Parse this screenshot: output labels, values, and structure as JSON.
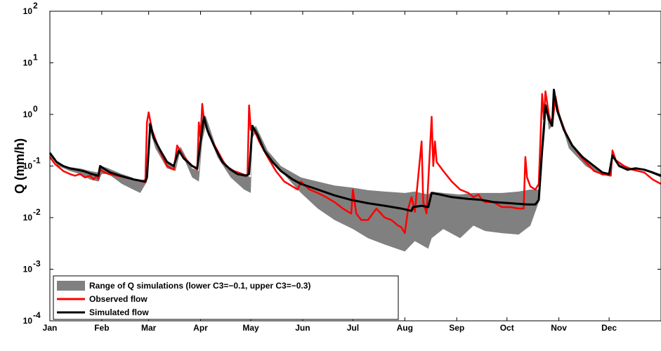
{
  "chart_data": {
    "type": "line",
    "title": "",
    "xlabel": "",
    "ylabel": "Q (mm/h)",
    "yscale": "log",
    "ylim": [
      0.0001,
      100
    ],
    "xlim": [
      0,
      365
    ],
    "grid": false,
    "legend_position": "bottom-left",
    "x_ticks": [
      {
        "label": "Jan",
        "day": 0
      },
      {
        "label": "Feb",
        "day": 31
      },
      {
        "label": "Mar",
        "day": 59
      },
      {
        "label": "Apr",
        "day": 90
      },
      {
        "label": "May",
        "day": 120
      },
      {
        "label": "Jun",
        "day": 151
      },
      {
        "label": "Jul",
        "day": 181
      },
      {
        "label": "Aug",
        "day": 212
      },
      {
        "label": "Sep",
        "day": 243
      },
      {
        "label": "Oct",
        "day": 273
      },
      {
        "label": "Nov",
        "day": 304
      },
      {
        "label": "Dec",
        "day": 334
      }
    ],
    "y_ticks": [
      {
        "base": "10",
        "exp": "-4",
        "value": 0.0001
      },
      {
        "base": "10",
        "exp": "-3",
        "value": 0.001
      },
      {
        "base": "10",
        "exp": "-2",
        "value": 0.01
      },
      {
        "base": "10",
        "exp": "-1",
        "value": 0.1
      },
      {
        "base": "10",
        "exp": "0",
        "value": 1
      },
      {
        "base": "10",
        "exp": "1",
        "value": 10
      },
      {
        "base": "10",
        "exp": "2",
        "value": 100
      }
    ],
    "legend": [
      {
        "label": "Range of Q simulations (lower C3=−0.1, upper C3=−0.3)",
        "color": "#808080",
        "kind": "patch"
      },
      {
        "label": "Observed flow",
        "color": "#ff0000",
        "kind": "line"
      },
      {
        "label": "Simulated flow",
        "color": "#000000",
        "kind": "line"
      }
    ],
    "series": [
      {
        "name": "Range of Q simulations (lower C3=−0.1, upper C3=−0.3)",
        "kind": "band",
        "color": "#808080",
        "points": [
          [
            0,
            0.16,
            0.18
          ],
          [
            5,
            0.1,
            0.11
          ],
          [
            12,
            0.08,
            0.095
          ],
          [
            18,
            0.07,
            0.09
          ],
          [
            24,
            0.055,
            0.08
          ],
          [
            29,
            0.05,
            0.075
          ],
          [
            31,
            0.07,
            0.1
          ],
          [
            35,
            0.07,
            0.09
          ],
          [
            43,
            0.045,
            0.07
          ],
          [
            49,
            0.036,
            0.06
          ],
          [
            54,
            0.03,
            0.05
          ],
          [
            58,
            0.05,
            0.06
          ],
          [
            59,
            0.6,
            0.75
          ],
          [
            63,
            0.22,
            0.28
          ],
          [
            70,
            0.09,
            0.12
          ],
          [
            75,
            0.08,
            0.1
          ],
          [
            78,
            0.2,
            0.24
          ],
          [
            85,
            0.06,
            0.09
          ],
          [
            89,
            0.05,
            0.08
          ],
          [
            91,
            0.3,
            0.7
          ],
          [
            93,
            0.6,
            0.95
          ],
          [
            100,
            0.15,
            0.2
          ],
          [
            108,
            0.06,
            0.08
          ],
          [
            116,
            0.035,
            0.07
          ],
          [
            120,
            0.03,
            0.06
          ],
          [
            121,
            0.35,
            0.5
          ],
          [
            123,
            0.45,
            0.6
          ],
          [
            130,
            0.15,
            0.2
          ],
          [
            138,
            0.08,
            0.1
          ],
          [
            150,
            0.03,
            0.06
          ],
          [
            160,
            0.015,
            0.05
          ],
          [
            170,
            0.009,
            0.042
          ],
          [
            181,
            0.006,
            0.038
          ],
          [
            190,
            0.004,
            0.034
          ],
          [
            200,
            0.003,
            0.032
          ],
          [
            212,
            0.0022,
            0.03
          ],
          [
            218,
            0.0035,
            0.032
          ],
          [
            226,
            0.0025,
            0.028
          ],
          [
            228,
            0.004,
            0.032
          ],
          [
            235,
            0.006,
            0.03
          ],
          [
            245,
            0.004,
            0.028
          ],
          [
            253,
            0.007,
            0.03
          ],
          [
            260,
            0.0055,
            0.03
          ],
          [
            270,
            0.005,
            0.03
          ],
          [
            280,
            0.0047,
            0.032
          ],
          [
            287,
            0.007,
            0.035
          ],
          [
            292,
            0.02,
            0.035
          ],
          [
            294,
            0.3,
            0.45
          ],
          [
            296,
            1.6,
            1.8
          ],
          [
            298,
            0.5,
            0.7
          ],
          [
            300,
            0.6,
            0.9
          ],
          [
            301,
            2.3,
            3.0
          ],
          [
            303,
            1.2,
            1.5
          ],
          [
            310,
            0.22,
            0.3
          ],
          [
            320,
            0.1,
            0.14
          ],
          [
            330,
            0.065,
            0.075
          ],
          [
            335,
            0.07,
            0.075
          ],
          [
            336,
            0.15,
            0.16
          ],
          [
            340,
            0.1,
            0.11
          ],
          [
            345,
            0.08,
            0.09
          ],
          [
            350,
            0.09,
            0.095
          ],
          [
            358,
            0.075,
            0.08
          ],
          [
            365,
            0.06,
            0.07
          ]
        ]
      },
      {
        "name": "Observed flow",
        "kind": "line",
        "color": "#ff0000",
        "points": [
          [
            0,
            0.15
          ],
          [
            3,
            0.11
          ],
          [
            8,
            0.08
          ],
          [
            12,
            0.07
          ],
          [
            15,
            0.065
          ],
          [
            18,
            0.07
          ],
          [
            21,
            0.06
          ],
          [
            24,
            0.065
          ],
          [
            26,
            0.055
          ],
          [
            28,
            0.065
          ],
          [
            29,
            0.055
          ],
          [
            30,
            0.09
          ],
          [
            31,
            0.08
          ],
          [
            35,
            0.07
          ],
          [
            40,
            0.065
          ],
          [
            45,
            0.06
          ],
          [
            50,
            0.055
          ],
          [
            55,
            0.05
          ],
          [
            57,
            0.048
          ],
          [
            58,
            0.7
          ],
          [
            59,
            1.1
          ],
          [
            61,
            0.5
          ],
          [
            65,
            0.22
          ],
          [
            70,
            0.1
          ],
          [
            74,
            0.085
          ],
          [
            76,
            0.25
          ],
          [
            80,
            0.15
          ],
          [
            85,
            0.1
          ],
          [
            88,
            0.085
          ],
          [
            89,
            0.7
          ],
          [
            90,
            0.35
          ],
          [
            91,
            1.6
          ],
          [
            92,
            0.8
          ],
          [
            95,
            0.4
          ],
          [
            100,
            0.2
          ],
          [
            105,
            0.1
          ],
          [
            110,
            0.08
          ],
          [
            115,
            0.07
          ],
          [
            118,
            0.065
          ],
          [
            119,
            1.5
          ],
          [
            120,
            0.5
          ],
          [
            122,
            0.5
          ],
          [
            125,
            0.3
          ],
          [
            130,
            0.15
          ],
          [
            135,
            0.08
          ],
          [
            140,
            0.05
          ],
          [
            145,
            0.04
          ],
          [
            148,
            0.035
          ],
          [
            150,
            0.05
          ],
          [
            155,
            0.035
          ],
          [
            160,
            0.03
          ],
          [
            165,
            0.025
          ],
          [
            170,
            0.02
          ],
          [
            175,
            0.015
          ],
          [
            180,
            0.012
          ],
          [
            181,
            0.035
          ],
          [
            183,
            0.012
          ],
          [
            186,
            0.009
          ],
          [
            190,
            0.009
          ],
          [
            195,
            0.015
          ],
          [
            200,
            0.01
          ],
          [
            204,
            0.009
          ],
          [
            208,
            0.007
          ],
          [
            210,
            0.0065
          ],
          [
            212,
            0.005
          ],
          [
            214,
            0.015
          ],
          [
            216,
            0.025
          ],
          [
            218,
            0.013
          ],
          [
            222,
            0.3
          ],
          [
            223,
            0.02
          ],
          [
            225,
            0.012
          ],
          [
            228,
            0.9
          ],
          [
            229,
            0.1
          ],
          [
            230,
            0.3
          ],
          [
            231,
            0.12
          ],
          [
            235,
            0.08
          ],
          [
            240,
            0.05
          ],
          [
            245,
            0.035
          ],
          [
            250,
            0.03
          ],
          [
            253,
            0.025
          ],
          [
            256,
            0.028
          ],
          [
            258,
            0.022
          ],
          [
            260,
            0.02
          ],
          [
            265,
            0.02
          ],
          [
            270,
            0.016
          ],
          [
            275,
            0.016
          ],
          [
            280,
            0.015
          ],
          [
            283,
            0.015
          ],
          [
            284,
            0.15
          ],
          [
            285,
            0.06
          ],
          [
            287,
            0.04
          ],
          [
            290,
            0.035
          ],
          [
            292,
            0.045
          ],
          [
            294,
            2.5
          ],
          [
            295,
            0.8
          ],
          [
            296,
            2.8
          ],
          [
            298,
            1.0
          ],
          [
            300,
            0.6
          ],
          [
            302,
            2.2
          ],
          [
            304,
            1.0
          ],
          [
            308,
            0.45
          ],
          [
            312,
            0.25
          ],
          [
            318,
            0.14
          ],
          [
            325,
            0.08
          ],
          [
            330,
            0.07
          ],
          [
            335,
            0.065
          ],
          [
            336,
            0.2
          ],
          [
            338,
            0.13
          ],
          [
            343,
            0.1
          ],
          [
            348,
            0.085
          ],
          [
            355,
            0.075
          ],
          [
            360,
            0.055
          ],
          [
            365,
            0.045
          ]
        ]
      },
      {
        "name": "Simulated flow",
        "kind": "line",
        "color": "#000000",
        "points": [
          [
            0,
            0.18
          ],
          [
            4,
            0.12
          ],
          [
            8,
            0.1
          ],
          [
            12,
            0.09
          ],
          [
            16,
            0.085
          ],
          [
            20,
            0.08
          ],
          [
            25,
            0.07
          ],
          [
            29,
            0.065
          ],
          [
            30,
            0.1
          ],
          [
            32,
            0.09
          ],
          [
            36,
            0.075
          ],
          [
            42,
            0.065
          ],
          [
            50,
            0.055
          ],
          [
            57,
            0.05
          ],
          [
            58,
            0.06
          ],
          [
            60,
            0.65
          ],
          [
            62,
            0.35
          ],
          [
            66,
            0.2
          ],
          [
            70,
            0.12
          ],
          [
            74,
            0.1
          ],
          [
            77,
            0.2
          ],
          [
            80,
            0.14
          ],
          [
            85,
            0.1
          ],
          [
            88,
            0.09
          ],
          [
            90,
            0.3
          ],
          [
            92,
            0.9
          ],
          [
            94,
            0.5
          ],
          [
            98,
            0.25
          ],
          [
            103,
            0.12
          ],
          [
            108,
            0.085
          ],
          [
            112,
            0.07
          ],
          [
            117,
            0.065
          ],
          [
            119,
            0.07
          ],
          [
            121,
            0.6
          ],
          [
            124,
            0.4
          ],
          [
            128,
            0.2
          ],
          [
            133,
            0.12
          ],
          [
            138,
            0.08
          ],
          [
            145,
            0.055
          ],
          [
            150,
            0.045
          ],
          [
            160,
            0.035
          ],
          [
            170,
            0.027
          ],
          [
            180,
            0.022
          ],
          [
            190,
            0.019
          ],
          [
            200,
            0.017
          ],
          [
            210,
            0.015
          ],
          [
            216,
            0.0135
          ],
          [
            217,
            0.016
          ],
          [
            222,
            0.017
          ],
          [
            226,
            0.016
          ],
          [
            228,
            0.03
          ],
          [
            233,
            0.028
          ],
          [
            240,
            0.025
          ],
          [
            250,
            0.023
          ],
          [
            258,
            0.022
          ],
          [
            265,
            0.02
          ],
          [
            275,
            0.019
          ],
          [
            285,
            0.018
          ],
          [
            290,
            0.018
          ],
          [
            292,
            0.022
          ],
          [
            294,
            0.2
          ],
          [
            295,
            0.5
          ],
          [
            296,
            1.5
          ],
          [
            298,
            0.8
          ],
          [
            300,
            0.6
          ],
          [
            301,
            3.0
          ],
          [
            303,
            1.2
          ],
          [
            307,
            0.5
          ],
          [
            312,
            0.25
          ],
          [
            318,
            0.15
          ],
          [
            325,
            0.1
          ],
          [
            330,
            0.075
          ],
          [
            334,
            0.07
          ],
          [
            336,
            0.16
          ],
          [
            340,
            0.1
          ],
          [
            345,
            0.085
          ],
          [
            350,
            0.09
          ],
          [
            355,
            0.085
          ],
          [
            360,
            0.075
          ],
          [
            365,
            0.065
          ]
        ]
      }
    ]
  }
}
